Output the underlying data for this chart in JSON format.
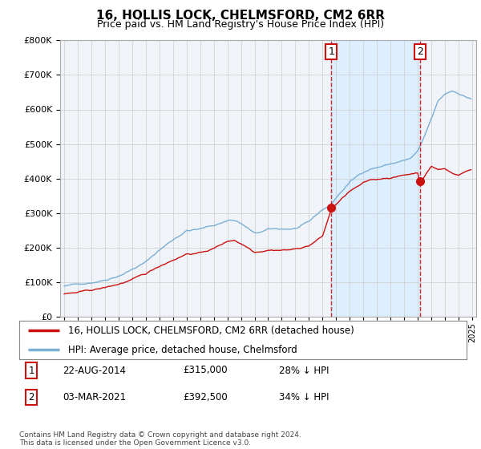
{
  "title": "16, HOLLIS LOCK, CHELMSFORD, CM2 6RR",
  "subtitle": "Price paid vs. HM Land Registry's House Price Index (HPI)",
  "legend_line1": "16, HOLLIS LOCK, CHELMSFORD, CM2 6RR (detached house)",
  "legend_line2": "HPI: Average price, detached house, Chelmsford",
  "annotation1_label": "1",
  "annotation1_date": "22-AUG-2014",
  "annotation1_price": "£315,000",
  "annotation1_hpi": "28% ↓ HPI",
  "annotation2_label": "2",
  "annotation2_date": "03-MAR-2021",
  "annotation2_price": "£392,500",
  "annotation2_hpi": "34% ↓ HPI",
  "footer": "Contains HM Land Registry data © Crown copyright and database right 2024.\nThis data is licensed under the Open Government Licence v3.0.",
  "hpi_color": "#7bafd4",
  "price_color": "#cc1111",
  "vline_color": "#cc1111",
  "annotation_box_color": "#cc1111",
  "shade_color": "#ddeeff",
  "ylim": [
    0,
    800000
  ],
  "yticks": [
    0,
    100000,
    200000,
    300000,
    400000,
    500000,
    600000,
    700000,
    800000
  ],
  "sale1_year": 2014.64,
  "sale1_value": 315000,
  "sale2_year": 2021.16,
  "sale2_value": 392500,
  "bg_color": "#ffffff",
  "grid_color": "#cccccc",
  "plot_bg": "#f0f4f8"
}
